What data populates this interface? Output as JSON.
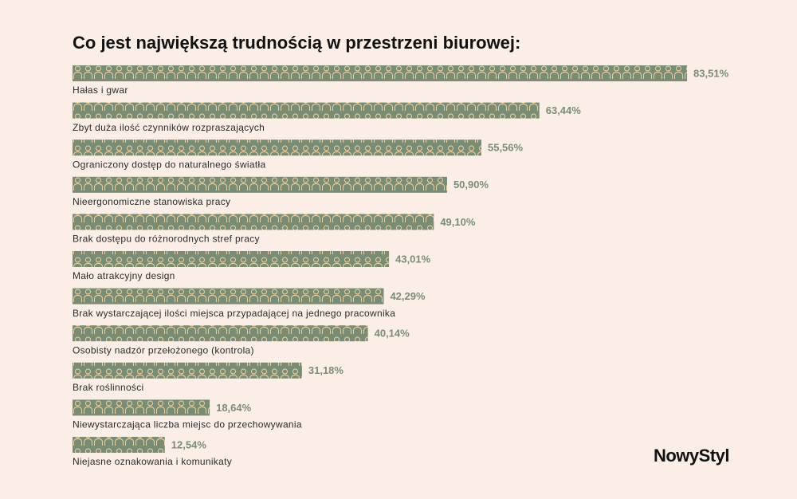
{
  "chart_data": {
    "type": "bar",
    "orientation": "horizontal",
    "title": "Co jest największą trudnością w przestrzeni biurowej:",
    "categories": [
      "Hałas i gwar",
      "Zbyt duża ilość czynników rozpraszających",
      "Ograniczony dostęp do naturalnego światła",
      "Nieergonomiczne stanowiska pracy",
      "Brak dostępu do różnorodnych stref pracy",
      "Mało atrakcyjny design",
      "Brak wystarczającej ilości miejsca przypadającej na jednego pracownika",
      "Osobisty nadzór przełożonego (kontrola)",
      "Brak roślinności",
      "Niewystarczająca liczba miejsc do przechowywania",
      "Niejasne oznakowania i komunikaty"
    ],
    "values": [
      83.51,
      63.44,
      55.56,
      50.9,
      49.1,
      43.01,
      42.29,
      40.14,
      31.18,
      18.64,
      12.54
    ],
    "value_labels": [
      "83,51%",
      "63,44%",
      "55,56%",
      "50,90%",
      "49,10%",
      "43,01%",
      "42,29%",
      "40,14%",
      "31,18%",
      "18,64%",
      "12,54%"
    ],
    "color": "#7b8c75"
  },
  "logo": "NowyStyl"
}
